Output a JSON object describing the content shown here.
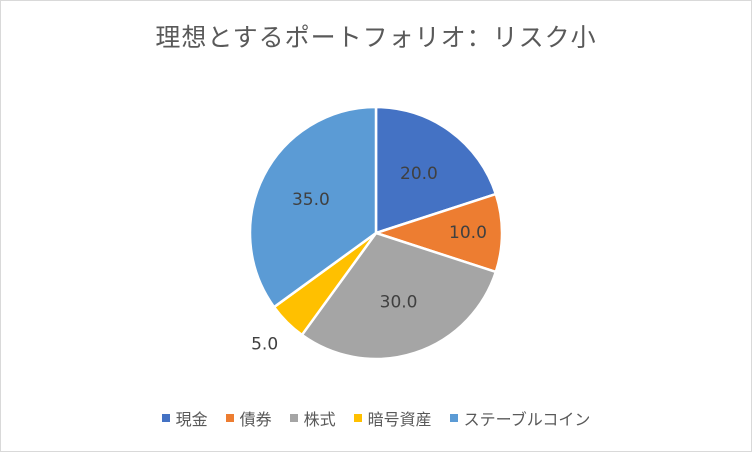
{
  "chart_data": {
    "type": "pie",
    "title": "理想とするポートフォリオ：リスク小",
    "categories": [
      "現金",
      "債券",
      "株式",
      "暗号資産",
      "ステーブルコイン"
    ],
    "values": [
      20.0,
      10.0,
      30.0,
      5.0,
      35.0
    ],
    "labels": [
      "20.0",
      "10.0",
      "30.0",
      "5.0",
      "35.0"
    ],
    "colors": [
      "#4472c4",
      "#ed7d31",
      "#a5a5a5",
      "#ffc000",
      "#5b9bd5"
    ],
    "legend": "bottom"
  }
}
